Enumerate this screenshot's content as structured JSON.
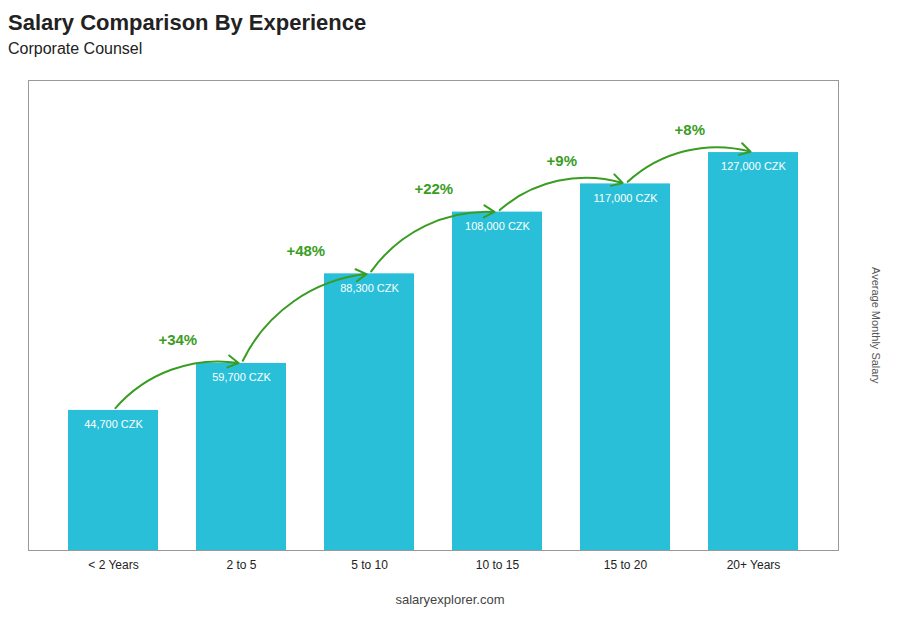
{
  "chart_data": {
    "type": "bar",
    "title": "Salary Comparison By Experience",
    "subtitle": "Corporate Counsel",
    "ylabel": "Average Monthly Salary",
    "caption": "salaryexplorer.com",
    "categories": [
      "< 2 Years",
      "2 to 5",
      "5 to 10",
      "10 to 15",
      "15 to 20",
      "20+ Years"
    ],
    "values": [
      44700,
      59700,
      88300,
      108000,
      117000,
      127000
    ],
    "value_labels": [
      "44,700 CZK",
      "59,700 CZK",
      "88,300 CZK",
      "108,000 CZK",
      "117,000 CZK",
      "127,000 CZK"
    ],
    "data_labels": true,
    "color": "#29bfd8",
    "ylim": [
      0,
      150000
    ],
    "tick_labels": "x",
    "grid": false,
    "annotations": [
      {
        "from": "< 2 Years",
        "to": "2 to 5",
        "text": "+34%"
      },
      {
        "from": "2 to 5",
        "to": "5 to 10",
        "text": "+48%"
      },
      {
        "from": "5 to 10",
        "to": "10 to 15",
        "text": "+22%"
      },
      {
        "from": "10 to 15",
        "to": "15 to 20",
        "text": "+9%"
      },
      {
        "from": "15 to 20",
        "to": "20+ Years",
        "text": "+8%"
      }
    ]
  }
}
